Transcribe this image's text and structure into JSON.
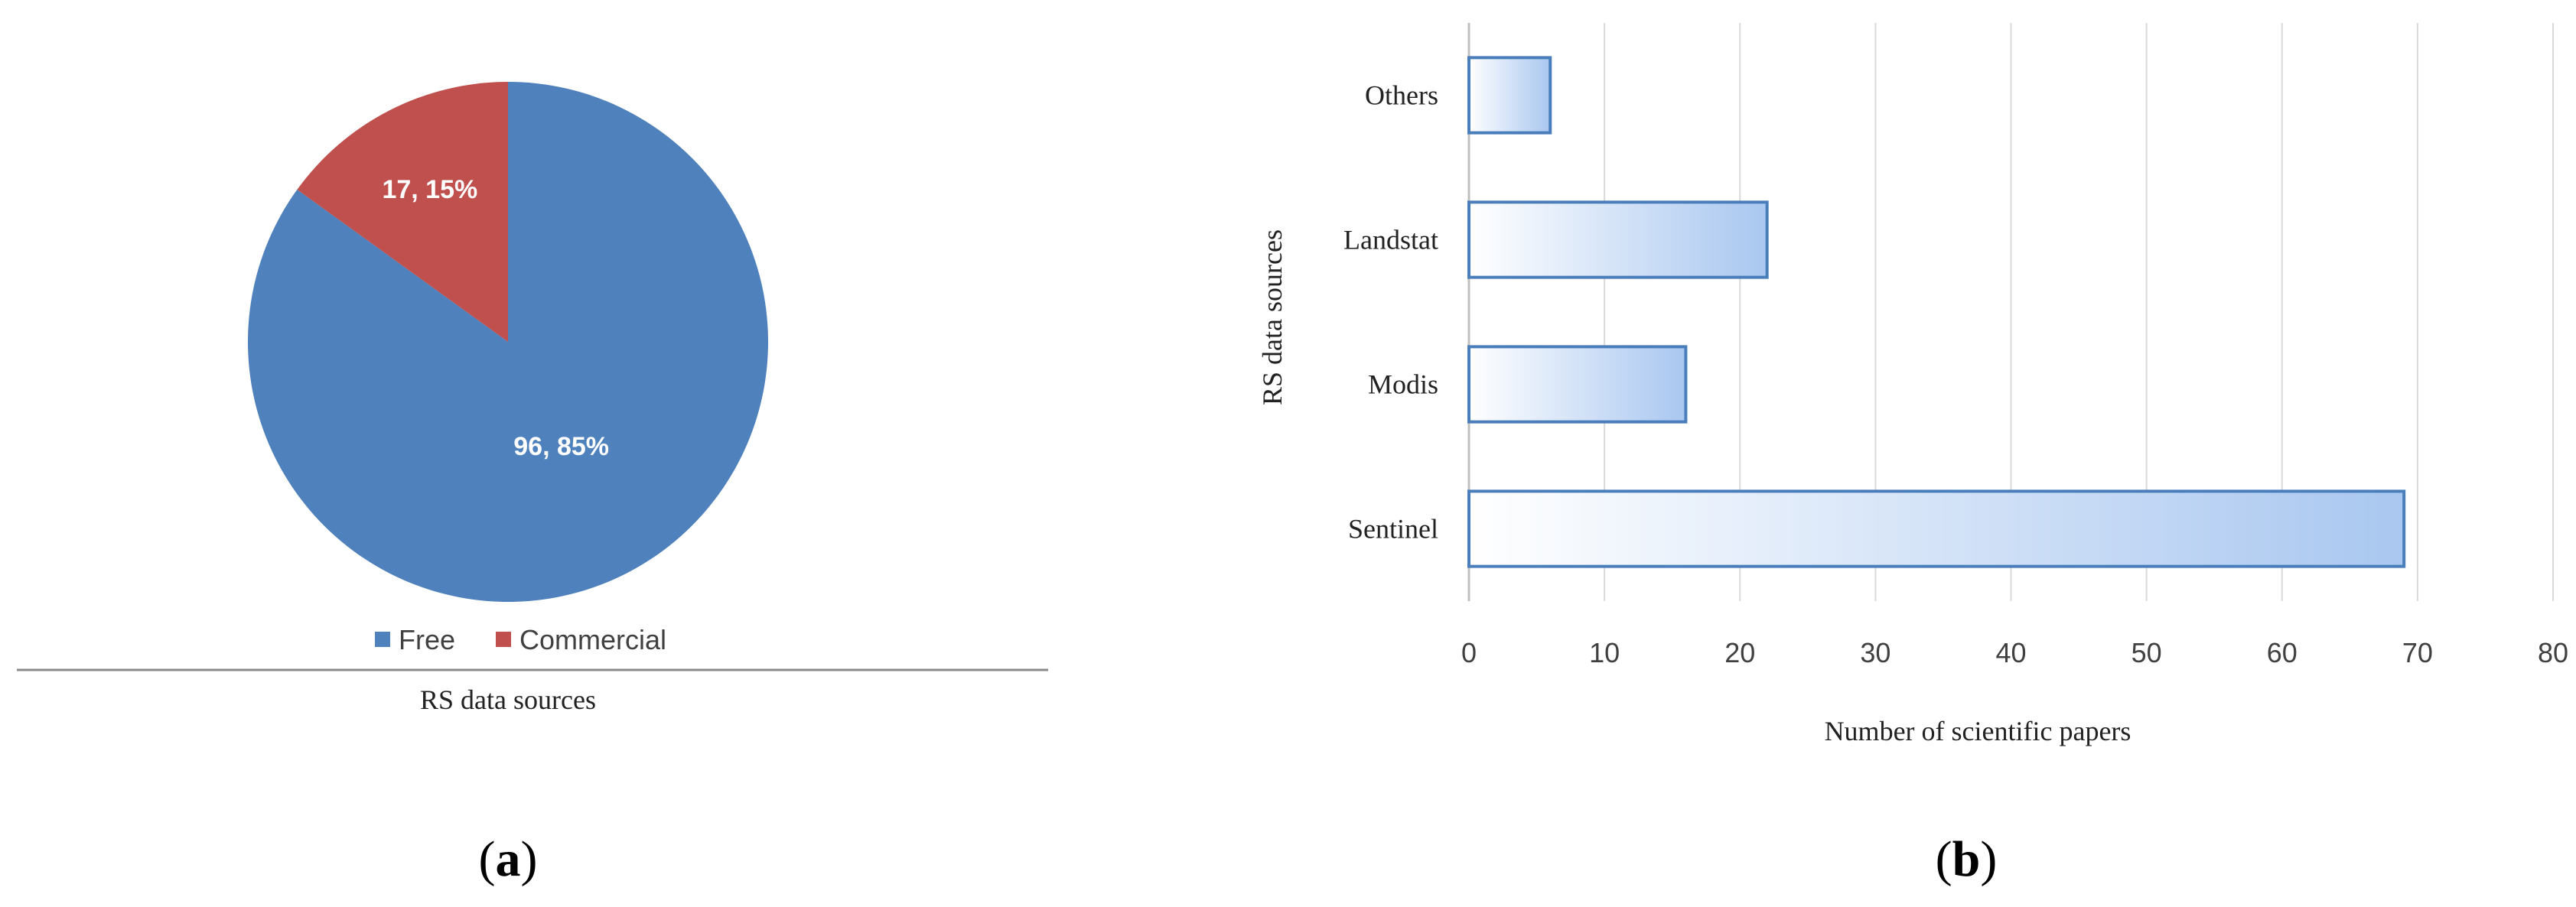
{
  "chart_data": [
    {
      "type": "pie",
      "panel_label": "a",
      "title": "RS data sources",
      "slices": [
        {
          "name": "Free",
          "value": 96,
          "percent": 85,
          "label": "96, 85%",
          "color": "#4f81bd"
        },
        {
          "name": "Commercial",
          "value": 17,
          "percent": 15,
          "label": "17, 15%",
          "color": "#c0504d"
        }
      ],
      "legend": [
        "Free",
        "Commercial"
      ],
      "legend_position": "bottom"
    },
    {
      "type": "bar",
      "orientation": "horizontal",
      "panel_label": "b",
      "categories": [
        "Others",
        "Landstat",
        "Modis",
        "Sentinel"
      ],
      "values": [
        6,
        22,
        16,
        69
      ],
      "xlabel": "Number of scientific papers",
      "ylabel": "RS data sources",
      "xlim": [
        0,
        80
      ],
      "xticks": [
        "0",
        "10",
        "20",
        "30",
        "40",
        "50",
        "60",
        "70",
        "80"
      ],
      "grid": "vertical",
      "bar_color": "#c6d9f1",
      "bar_edge_color": "#4a7ebb"
    }
  ]
}
